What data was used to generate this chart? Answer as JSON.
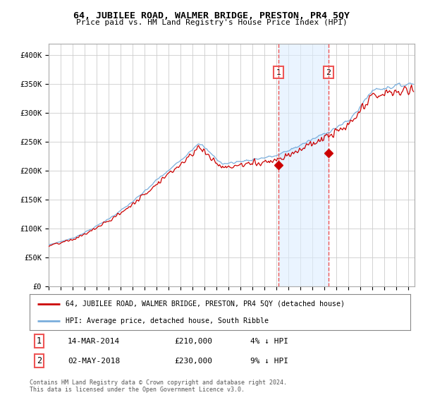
{
  "title": "64, JUBILEE ROAD, WALMER BRIDGE, PRESTON, PR4 5QY",
  "subtitle": "Price paid vs. HM Land Registry's House Price Index (HPI)",
  "ylabel_ticks": [
    "£0",
    "£50K",
    "£100K",
    "£150K",
    "£200K",
    "£250K",
    "£300K",
    "£350K",
    "£400K"
  ],
  "ytick_values": [
    0,
    50000,
    100000,
    150000,
    200000,
    250000,
    300000,
    350000,
    400000
  ],
  "ylim": [
    0,
    420000
  ],
  "xlim_start": 1995.0,
  "xlim_end": 2025.5,
  "sale1_x": 2014.17,
  "sale1_y": 210000,
  "sale1_label": "1",
  "sale1_date": "14-MAR-2014",
  "sale1_price": "£210,000",
  "sale1_hpi": "4% ↓ HPI",
  "sale2_x": 2018.33,
  "sale2_y": 230000,
  "sale2_label": "2",
  "sale2_date": "02-MAY-2018",
  "sale2_price": "£230,000",
  "sale2_hpi": "9% ↓ HPI",
  "red_line_color": "#cc0000",
  "blue_line_color": "#7aaedc",
  "shade_color": "#ddeeff",
  "grid_color": "#cccccc",
  "vline_color": "#ee5555",
  "background_color": "#ffffff",
  "legend_label_red": "64, JUBILEE ROAD, WALMER BRIDGE, PRESTON, PR4 5QY (detached house)",
  "legend_label_blue": "HPI: Average price, detached house, South Ribble",
  "footer": "Contains HM Land Registry data © Crown copyright and database right 2024.\nThis data is licensed under the Open Government Licence v3.0."
}
